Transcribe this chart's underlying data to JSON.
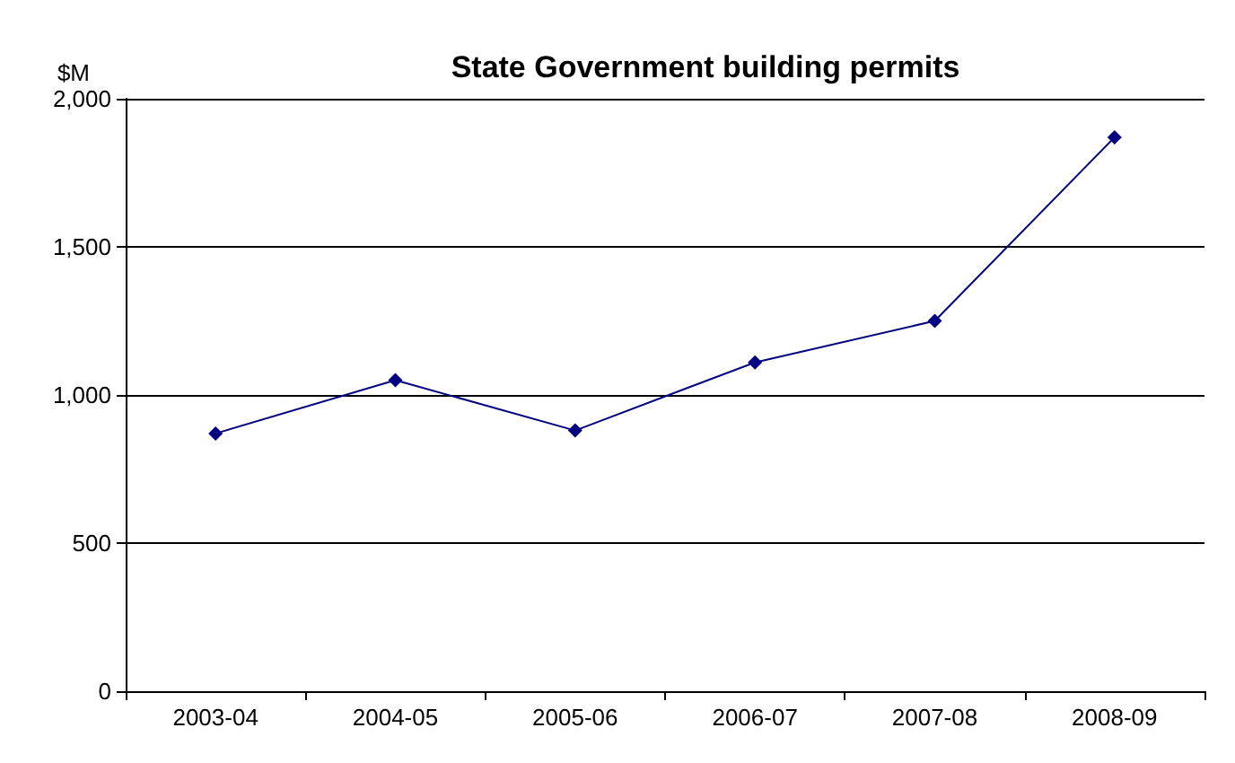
{
  "chart_data": {
    "type": "line",
    "title": "State Government building permits",
    "ylabel": "$M",
    "categories": [
      "2003-04",
      "2004-05",
      "2005-06",
      "2006-07",
      "2007-08",
      "2008-09"
    ],
    "series": [
      {
        "color": "#000080",
        "values": [
          870,
          1050,
          880,
          1110,
          1250,
          1870
        ]
      }
    ],
    "ylim": [
      0,
      2000
    ],
    "yticks": [
      0,
      500,
      {
        "value": 1000,
        "label": "1,000"
      },
      {
        "value": 1500,
        "label": "1,500"
      },
      {
        "value": 2000,
        "label": "2,000"
      }
    ],
    "grid": "y",
    "marker": "diamond",
    "line_style": "solid"
  }
}
